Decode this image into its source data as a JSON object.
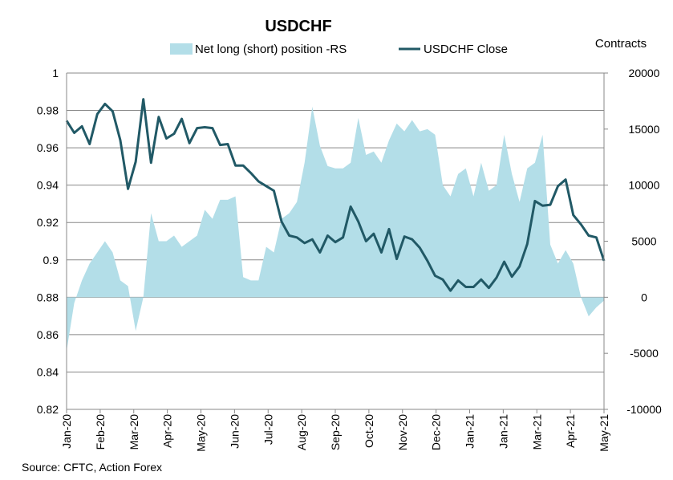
{
  "chart_data": {
    "type": "line",
    "title": "USDCHF",
    "right_axis_label": "Contracts",
    "source": "Source: CFTC, Action Forex",
    "legend": [
      {
        "label": "Net long (short) position -RS",
        "color": "#b3dee8",
        "kind": "area"
      },
      {
        "label": "USDCHF Close",
        "color": "#215966",
        "kind": "line"
      }
    ],
    "legend_position": "top",
    "grid": true,
    "left_axis": {
      "min": 0.82,
      "max": 1.0,
      "ticks": [
        "1",
        "0.98",
        "0.96",
        "0.94",
        "0.92",
        "0.9",
        "0.88",
        "0.86",
        "0.84",
        "0.82"
      ]
    },
    "right_axis": {
      "min": -10000,
      "max": 20000,
      "ticks": [
        "20000",
        "15000",
        "10000",
        "5000",
        "0",
        "-5000",
        "-10000"
      ]
    },
    "x_tick_labels": [
      "Jan-20",
      "Feb-20",
      "Mar-20",
      "Apr-20",
      "May-20",
      "Jun-20",
      "Jul-20",
      "Aug-20",
      "Sep-20",
      "Oct-20",
      "Nov-20",
      "Dec-20",
      "Jan-21",
      "Jan-21",
      "Mar-21",
      "Apr-21",
      "May-21"
    ],
    "series": [
      {
        "name": "USDCHF Close",
        "axis": "left",
        "values": [
          0.9745,
          0.968,
          0.9715,
          0.962,
          0.978,
          0.9835,
          0.9795,
          0.964,
          0.938,
          0.9525,
          0.986,
          0.952,
          0.9765,
          0.965,
          0.9675,
          0.9755,
          0.9625,
          0.9705,
          0.971,
          0.9705,
          0.9615,
          0.962,
          0.9505,
          0.9505,
          0.9465,
          0.942,
          0.9395,
          0.937,
          0.9205,
          0.913,
          0.912,
          0.909,
          0.911,
          0.904,
          0.913,
          0.9095,
          0.912,
          0.9285,
          0.9205,
          0.91,
          0.914,
          0.904,
          0.9165,
          0.9005,
          0.9125,
          0.911,
          0.9065,
          0.8995,
          0.8915,
          0.8895,
          0.8835,
          0.889,
          0.8855,
          0.8855,
          0.8895,
          0.885,
          0.8905,
          0.899,
          0.891,
          0.8965,
          0.9085,
          0.9315,
          0.929,
          0.9295,
          0.9395,
          0.943,
          0.924,
          0.919,
          0.913,
          0.912,
          0.8995
        ]
      },
      {
        "name": "Net long (short) position -RS",
        "axis": "right",
        "values": [
          -4800,
          -500,
          1500,
          3000,
          4000,
          5000,
          4000,
          1500,
          1000,
          -3000,
          0,
          7500,
          5000,
          5000,
          5500,
          4500,
          5000,
          5500,
          7800,
          7000,
          8700,
          8700,
          9000,
          1800,
          1500,
          1500,
          4500,
          4000,
          7000,
          7500,
          8500,
          12000,
          17000,
          13500,
          11700,
          11500,
          11500,
          12000,
          16000,
          12700,
          13000,
          12000,
          14000,
          15500,
          14800,
          15800,
          14800,
          15000,
          14500,
          10000,
          9000,
          11000,
          11500,
          9000,
          12000,
          9500,
          10000,
          14500,
          11000,
          8500,
          11500,
          12000,
          14500,
          4700,
          3000,
          4200,
          3000,
          0,
          -1700,
          -900,
          -300
        ]
      }
    ]
  }
}
